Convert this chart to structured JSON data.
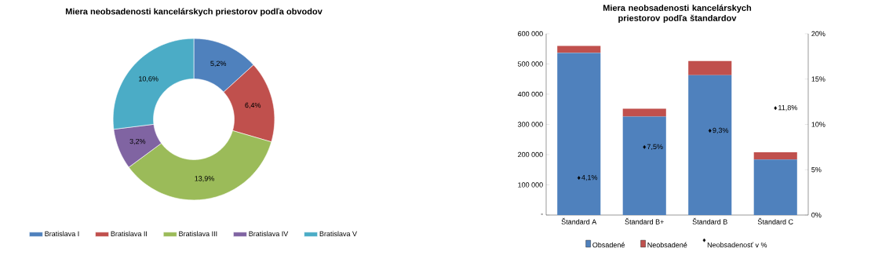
{
  "chart_data": [
    {
      "type": "donut",
      "title": "Miera neobsadenosti kancelárskych priestorov podľa obvodov",
      "categories": [
        "Bratislava I",
        "Bratislava II",
        "Bratislava III",
        "Bratislava IV",
        "Bratislava V"
      ],
      "values": [
        5.2,
        6.4,
        13.9,
        3.2,
        10.6
      ],
      "value_labels": [
        "5,2%",
        "6,4%",
        "13,9%",
        "3,2%",
        "10,6%"
      ],
      "colors": [
        "#4f81bd",
        "#c0504d",
        "#9bbb59",
        "#8064a2",
        "#4bacc6"
      ],
      "legend": "bottom"
    },
    {
      "type": "bar",
      "stacked": true,
      "title": "Miera neobsadenosti kancelárskych priestorov podľa štandardov",
      "categories": [
        "Štandard A",
        "Štandard B+",
        "Štandard B",
        "Štandard C"
      ],
      "series": [
        {
          "name": "Obsadené",
          "color": "#4f81bd",
          "values": [
            537000,
            326000,
            463000,
            184000
          ]
        },
        {
          "name": "Neobsadené",
          "color": "#c0504d",
          "values": [
            23000,
            26000,
            47000,
            24000
          ]
        },
        {
          "name": "Neobsadenosť v %",
          "type": "scatter",
          "axis": "y2",
          "marker": "diamond",
          "color": "#000000",
          "values": [
            4.1,
            7.5,
            9.3,
            11.8
          ],
          "value_labels": [
            "4,1%",
            "7,5%",
            "9,3%",
            "11,8%"
          ]
        }
      ],
      "ylim": [
        0,
        600000
      ],
      "yticks": [
        {
          "value": 0,
          "label": "-"
        },
        {
          "value": 100000,
          "label": "100 000"
        },
        {
          "value": 200000,
          "label": "200 000"
        },
        {
          "value": 300000,
          "label": "300 000"
        },
        {
          "value": 400000,
          "label": "400 000"
        },
        {
          "value": 500000,
          "label": "500 000"
        },
        {
          "value": 600000,
          "label": "600 000"
        }
      ],
      "y2lim": [
        0,
        20
      ],
      "y2ticks": [
        {
          "value": 0,
          "label": "0%"
        },
        {
          "value": 5,
          "label": "5%"
        },
        {
          "value": 10,
          "label": "10%"
        },
        {
          "value": 15,
          "label": "15%"
        },
        {
          "value": 20,
          "label": "20%"
        }
      ],
      "legend": "bottom"
    }
  ]
}
